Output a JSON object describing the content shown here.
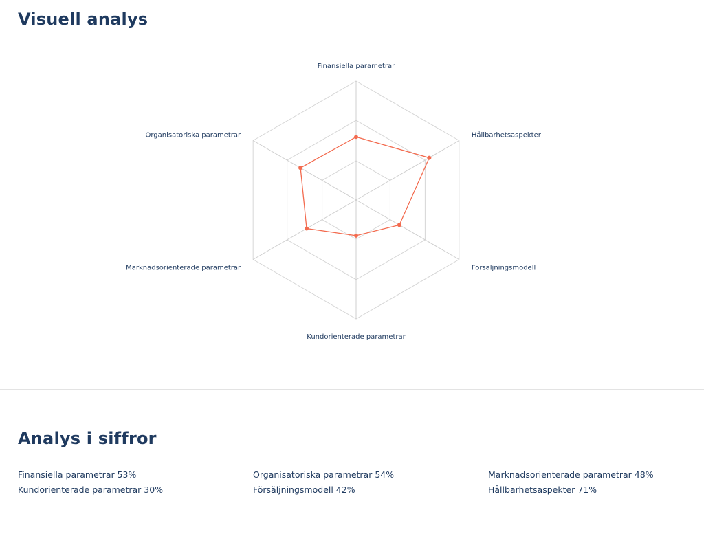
{
  "visual": {
    "title": "Visuell analys"
  },
  "numbers": {
    "title": "Analys i siffror",
    "rows": [
      [
        "Finansiella parametrar 53%",
        "Organisatoriska parametrar 54%",
        "Marknadsorienterade parametrar 48%"
      ],
      [
        "Kundorienterade parametrar 30%",
        "Försäljningsmodell 42%",
        "Hållbarhetsaspekter 71%"
      ]
    ]
  },
  "chart_data": {
    "type": "radar",
    "axes": [
      "Finansiella parametrar",
      "Hållbarhetsaspekter",
      "Försäljningsmodell",
      "Kundorienterade parametrar",
      "Marknadsorienterade parametrar",
      "Organisatoriska parametrar"
    ],
    "series": [
      {
        "values": [
          53,
          71,
          42,
          30,
          48,
          54
        ]
      }
    ],
    "rlim": [
      0,
      100
    ],
    "grid_levels": [
      33,
      67,
      100
    ],
    "colors": {
      "series": "#f36b4f",
      "grid": "#d6d6d6",
      "axis": "#cfcfcf",
      "text": "#1f3a5f"
    }
  }
}
